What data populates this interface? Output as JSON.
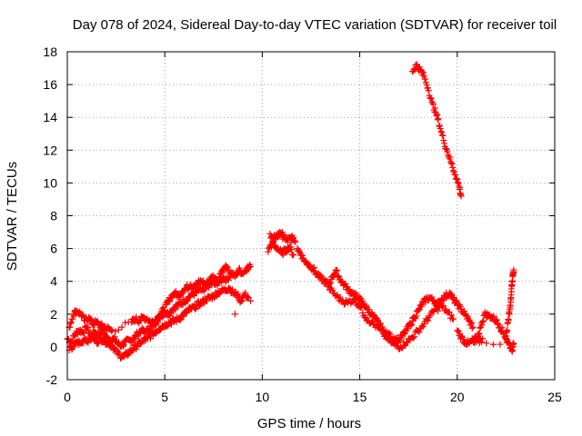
{
  "chart_data": {
    "type": "scatter",
    "title": "Day 078 of 2024, Sidereal Day-to-day VTEC variation (SDTVAR) for receiver toil",
    "xlabel": "GPS time / hours",
    "ylabel": "SDTVAR / TECUs",
    "xlim": [
      0,
      25
    ],
    "ylim": [
      -2,
      18
    ],
    "xticks": [
      0,
      5,
      10,
      15,
      20,
      25
    ],
    "yticks": [
      -2,
      0,
      2,
      4,
      6,
      8,
      10,
      12,
      14,
      16,
      18
    ],
    "xtick_labels": [
      "0",
      "5",
      "10",
      "15",
      "20",
      "25"
    ],
    "ytick_labels": [
      "-2",
      "0",
      "2",
      "4",
      "6",
      "8",
      "10",
      "12",
      "14",
      "16",
      "18"
    ],
    "grid": true,
    "marker": "plus",
    "marker_color": "#ff0000",
    "series": [
      {
        "name": "main",
        "x": [
          0.0,
          0.2,
          0.4,
          0.6,
          0.8,
          1.0,
          1.2,
          1.4,
          1.6,
          1.8,
          2.0,
          2.2,
          2.4,
          2.6,
          2.8,
          3.0,
          3.2,
          3.4,
          3.6,
          3.8,
          4.0,
          4.2,
          4.4,
          4.6,
          4.8,
          5.0,
          5.2,
          5.4,
          5.6,
          5.8,
          6.0,
          6.2,
          6.4,
          6.6,
          6.8,
          7.0,
          7.2,
          7.4,
          7.6,
          7.8,
          8.0,
          8.2,
          8.4,
          8.6,
          8.8,
          9.0,
          9.2,
          9.4
        ],
        "y": [
          0.5,
          0.3,
          0.8,
          1.0,
          0.9,
          1.2,
          0.7,
          0.9,
          0.8,
          1.0,
          0.6,
          0.4,
          0.5,
          0.2,
          0.1,
          0.3,
          0.4,
          0.5,
          0.8,
          1.0,
          0.9,
          1.1,
          1.3,
          1.6,
          1.9,
          2.1,
          2.0,
          2.3,
          2.5,
          2.6,
          2.8,
          3.0,
          3.2,
          3.3,
          3.5,
          3.4,
          3.7,
          3.9,
          3.8,
          4.0,
          4.2,
          4.1,
          4.5,
          4.3,
          4.7,
          4.5,
          4.8,
          4.9
        ]
      },
      {
        "name": "upper-band",
        "x": [
          0.1,
          0.3,
          0.5,
          0.7,
          0.9,
          1.1,
          1.3,
          1.5,
          1.7,
          1.9,
          2.1,
          2.3,
          3.3,
          3.5,
          3.7,
          3.9,
          4.1,
          4.3,
          4.5,
          4.7,
          4.9,
          5.1,
          5.3,
          5.5,
          5.7,
          5.9,
          6.1,
          6.3,
          6.5,
          6.7,
          6.9,
          7.1,
          7.3,
          7.5,
          7.7,
          7.9,
          8.1,
          8.3
        ],
        "y": [
          1.2,
          2.0,
          2.2,
          2.0,
          1.6,
          1.8,
          1.4,
          1.5,
          1.3,
          1.2,
          1.1,
          1.0,
          1.5,
          1.7,
          1.6,
          1.8,
          1.7,
          1.5,
          1.6,
          1.9,
          2.2,
          2.6,
          3.0,
          3.3,
          3.1,
          3.4,
          3.6,
          3.8,
          3.7,
          3.9,
          4.0,
          3.8,
          4.1,
          4.3,
          4.0,
          4.6,
          4.9,
          4.7
        ]
      },
      {
        "name": "lower-band",
        "x": [
          0.1,
          0.3,
          0.5,
          0.7,
          0.9,
          1.1,
          1.3,
          1.5,
          1.7,
          1.9,
          2.1,
          2.3,
          2.5,
          2.7,
          2.9,
          3.1,
          3.3,
          3.5,
          3.7,
          3.9,
          4.1,
          4.3,
          4.5,
          4.7,
          4.9,
          5.1,
          5.3,
          5.5,
          5.7,
          5.9,
          6.1,
          6.3,
          6.5,
          6.7,
          6.9,
          7.1,
          7.3,
          7.5,
          7.7,
          7.9,
          8.1,
          8.3,
          8.5,
          8.7,
          8.9,
          9.1,
          9.3
        ],
        "y": [
          -0.2,
          0.0,
          0.3,
          0.2,
          0.5,
          0.4,
          0.6,
          0.3,
          0.5,
          0.4,
          0.2,
          0.1,
          -0.3,
          -0.5,
          -0.6,
          -0.4,
          -0.2,
          0.0,
          0.2,
          0.4,
          0.5,
          0.7,
          0.9,
          1.1,
          1.3,
          1.4,
          1.5,
          1.6,
          1.7,
          1.9,
          2.1,
          2.3,
          2.4,
          2.6,
          2.7,
          2.9,
          3.0,
          3.1,
          3.3,
          3.4,
          3.5,
          3.6,
          3.3,
          3.2,
          2.8,
          3.2,
          3.0
        ]
      },
      {
        "name": "isolated-points",
        "x": [
          8.6,
          9.4,
          9.0
        ],
        "y": [
          2.0,
          2.8,
          4.5
        ],
        "points_only": true
      },
      {
        "name": "midday-cluster",
        "x": [
          10.3,
          10.5,
          10.7,
          10.9,
          11.1,
          11.3,
          11.5,
          11.7,
          10.4,
          10.6,
          10.8,
          11.0,
          11.2,
          11.4,
          11.6
        ],
        "y": [
          5.8,
          6.3,
          6.6,
          7.0,
          6.8,
          6.5,
          6.7,
          6.4,
          6.9,
          6.2,
          6.0,
          5.7,
          5.9,
          6.1,
          5.6
        ]
      },
      {
        "name": "afternoon",
        "x": [
          11.8,
          12.0,
          12.2,
          12.4,
          12.6,
          12.8,
          13.0,
          13.2,
          13.4,
          13.6,
          13.8,
          14.0,
          14.2,
          14.4,
          14.6,
          14.8,
          15.0,
          15.2,
          15.4,
          15.6,
          15.8,
          16.0,
          16.2,
          16.4,
          16.6,
          16.8,
          17.0,
          17.2,
          17.4,
          17.6,
          17.8,
          18.0,
          18.2,
          18.4,
          18.6,
          18.8,
          19.0,
          19.2,
          19.4,
          19.6,
          19.8,
          20.0,
          20.2,
          20.4,
          20.6,
          20.8
        ],
        "y": [
          6.0,
          5.6,
          5.2,
          5.0,
          4.8,
          4.4,
          4.2,
          4.0,
          3.8,
          4.3,
          4.6,
          4.1,
          3.8,
          3.5,
          3.3,
          3.1,
          2.9,
          2.6,
          2.3,
          2.0,
          1.7,
          1.4,
          1.0,
          0.8,
          0.6,
          0.5,
          0.4,
          0.7,
          1.0,
          1.4,
          1.8,
          2.2,
          2.6,
          2.9,
          3.0,
          2.8,
          2.6,
          2.9,
          3.1,
          3.3,
          2.9,
          2.6,
          2.3,
          2.0,
          1.6,
          1.2
        ]
      },
      {
        "name": "afternoon-lower",
        "x": [
          13.2,
          13.5,
          13.8,
          14.1,
          14.4,
          14.7,
          15.0,
          15.3,
          15.6,
          15.9,
          16.2,
          16.5,
          16.8,
          17.1,
          17.4,
          17.7,
          18.0,
          18.3,
          18.6,
          18.9,
          19.2,
          19.5,
          19.8
        ],
        "y": [
          4.0,
          3.5,
          3.1,
          2.8,
          2.7,
          2.9,
          2.5,
          1.8,
          1.5,
          1.2,
          0.8,
          0.4,
          0.1,
          0.0,
          0.3,
          0.6,
          1.0,
          1.4,
          1.9,
          2.3,
          2.5,
          2.1,
          1.7
        ]
      },
      {
        "name": "late-evening",
        "x": [
          20.0,
          20.2,
          20.4,
          20.6,
          20.8,
          21.0,
          21.2,
          21.4,
          21.6,
          21.8,
          22.0,
          22.2,
          22.4,
          22.6,
          22.8,
          22.9,
          20.8,
          21.0,
          21.3
        ],
        "y": [
          1.0,
          0.6,
          0.3,
          0.2,
          0.4,
          0.5,
          1.2,
          2.0,
          1.9,
          1.8,
          1.6,
          1.2,
          0.8,
          0.3,
          -0.2,
          0.2,
          0.4,
          0.3,
          0.5
        ]
      },
      {
        "name": "late-spike",
        "x": [
          22.5,
          22.6,
          22.7,
          22.75,
          22.8,
          22.85,
          22.9
        ],
        "y": [
          0.5,
          1.5,
          2.3,
          3.0,
          3.8,
          4.3,
          4.7
        ]
      },
      {
        "name": "high-arc",
        "x": [
          17.7,
          17.9,
          18.1,
          18.3,
          18.5,
          18.7,
          18.9,
          19.1,
          19.3,
          19.5,
          19.7,
          19.9,
          20.1,
          20.2
        ],
        "y": [
          16.8,
          17.2,
          16.9,
          16.5,
          15.8,
          14.9,
          14.3,
          13.5,
          12.6,
          11.9,
          11.2,
          10.5,
          9.8,
          9.2
        ]
      }
    ]
  }
}
